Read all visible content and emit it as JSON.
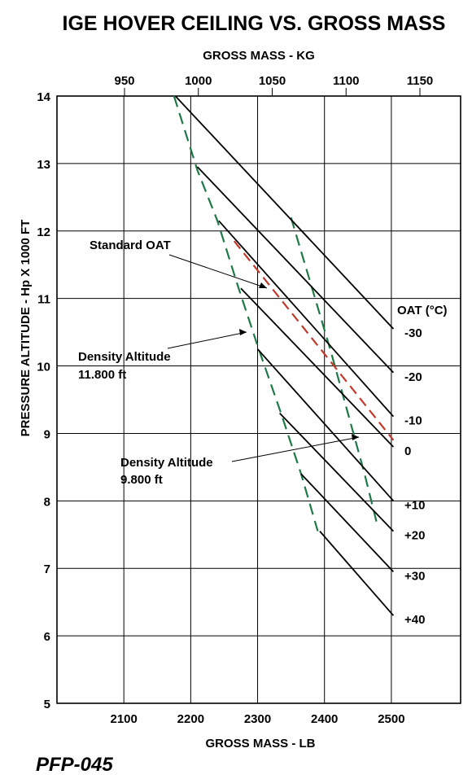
{
  "chart_data": {
    "type": "line",
    "title": "IGE HOVER CEILING VS. GROSS MASS",
    "xlabel": "GROSS MASS - LB",
    "x2label": "GROSS MASS - KG",
    "ylabel": "PRESSURE ALTITUDE - Hp X 1000 FT",
    "xlim": [
      2000,
      2600
    ],
    "ylim": [
      5,
      14
    ],
    "x_ticks": [
      "2100",
      "2200",
      "2300",
      "2400",
      "2500"
    ],
    "x_tick_values": [
      2100,
      2200,
      2300,
      2400,
      2500
    ],
    "x2_ticks": [
      "950",
      "1000",
      "1050",
      "1100",
      "1150"
    ],
    "x2_tick_values": [
      950,
      1000,
      1050,
      1100,
      1150
    ],
    "y_ticks": [
      "5",
      "6",
      "7",
      "8",
      "9",
      "10",
      "11",
      "12",
      "13",
      "14"
    ],
    "y_tick_values": [
      5,
      6,
      7,
      8,
      9,
      10,
      11,
      12,
      13,
      14
    ],
    "grid": true,
    "oat_legend_title": "OAT (°C)",
    "series": [
      {
        "name": "-30",
        "points": [
          [
            2177,
            14.0
          ],
          [
            2503,
            10.55
          ]
        ]
      },
      {
        "name": "-20",
        "points": [
          [
            2210,
            12.95
          ],
          [
            2503,
            9.9
          ]
        ]
      },
      {
        "name": "-10",
        "points": [
          [
            2242,
            12.15
          ],
          [
            2503,
            9.25
          ]
        ]
      },
      {
        "name": "0",
        "points": [
          [
            2275,
            11.15
          ],
          [
            2503,
            8.8
          ]
        ]
      },
      {
        "name": "+10",
        "points": [
          [
            2300,
            10.25
          ],
          [
            2503,
            8.0
          ]
        ]
      },
      {
        "name": "+20",
        "points": [
          [
            2333,
            9.3
          ],
          [
            2503,
            7.55
          ]
        ]
      },
      {
        "name": "+30",
        "points": [
          [
            2365,
            8.4
          ],
          [
            2503,
            6.95
          ]
        ]
      },
      {
        "name": "+40",
        "points": [
          [
            2393,
            7.55
          ],
          [
            2503,
            6.3
          ]
        ]
      }
    ],
    "standard_oat": {
      "label": "Standard OAT",
      "points": [
        [
          2265,
          11.85
        ],
        [
          2503,
          8.9
        ]
      ]
    },
    "density_altitude_lines": [
      {
        "label": "Density Altitude\n11.800 ft",
        "points": [
          [
            2175,
            14.0
          ],
          [
            2210,
            12.9
          ],
          [
            2240,
            12.15
          ],
          [
            2270,
            11.2
          ],
          [
            2300,
            10.3
          ],
          [
            2335,
            9.3
          ],
          [
            2365,
            8.4
          ],
          [
            2390,
            7.55
          ]
        ]
      },
      {
        "label": "Density Altitude\n9.800 ft",
        "points": [
          [
            2350,
            12.2
          ],
          [
            2380,
            11.2
          ],
          [
            2410,
            10.2
          ],
          [
            2435,
            9.3
          ],
          [
            2460,
            8.4
          ],
          [
            2480,
            7.6
          ]
        ]
      }
    ],
    "annotations": {
      "standard_oat_label": "Standard OAT",
      "density_upper_line1": "Density Altitude",
      "density_upper_line2": "11.800 ft",
      "density_lower_line1": "Density Altitude",
      "density_lower_line2": "9.800 ft"
    },
    "colors": {
      "oat_lines": "#000000",
      "standard_oat": "#c0392b",
      "density_altitude": "#1e7a45",
      "grid": "#000000"
    }
  },
  "figure_id": "PFP-045"
}
